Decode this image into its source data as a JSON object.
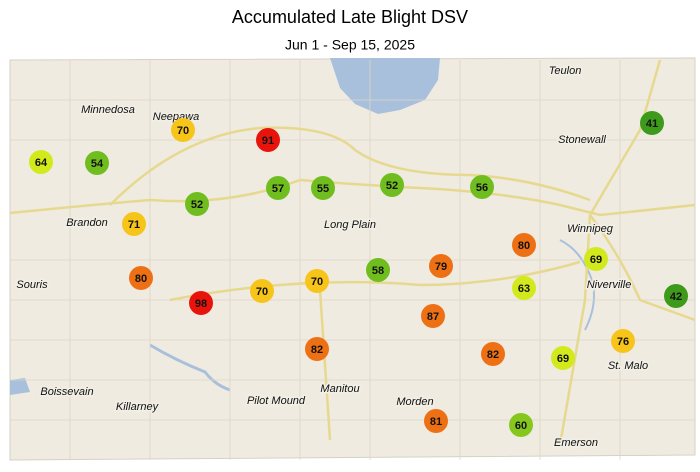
{
  "title": "Accumulated Late Blight DSV",
  "subtitle": "Jun 1 - Sep 15, 2025",
  "places": [
    "Teulon",
    "Minnedosa",
    "Neepawa",
    "Stonewall",
    "Winnipeg",
    "Brandon",
    "Long Plain",
    "Souris",
    "Niverville",
    "St. Malo",
    "Boissevain",
    "Manitou",
    "Pilot Mound",
    "Morden",
    "Killarney",
    "Emerson"
  ],
  "stations": [
    {
      "value": 64
    },
    {
      "value": 54
    },
    {
      "value": 70
    },
    {
      "value": 91
    },
    {
      "value": 57
    },
    {
      "value": 55
    },
    {
      "value": 52
    },
    {
      "value": 56
    },
    {
      "value": 41
    },
    {
      "value": 52
    },
    {
      "value": 71
    },
    {
      "value": 80
    },
    {
      "value": 69
    },
    {
      "value": 80
    },
    {
      "value": 98
    },
    {
      "value": 70
    },
    {
      "value": 70
    },
    {
      "value": 58
    },
    {
      "value": 79
    },
    {
      "value": 63
    },
    {
      "value": 42
    },
    {
      "value": 87
    },
    {
      "value": 82
    },
    {
      "value": 82
    },
    {
      "value": 69
    },
    {
      "value": 76
    },
    {
      "value": 81
    },
    {
      "value": 60
    }
  ]
}
